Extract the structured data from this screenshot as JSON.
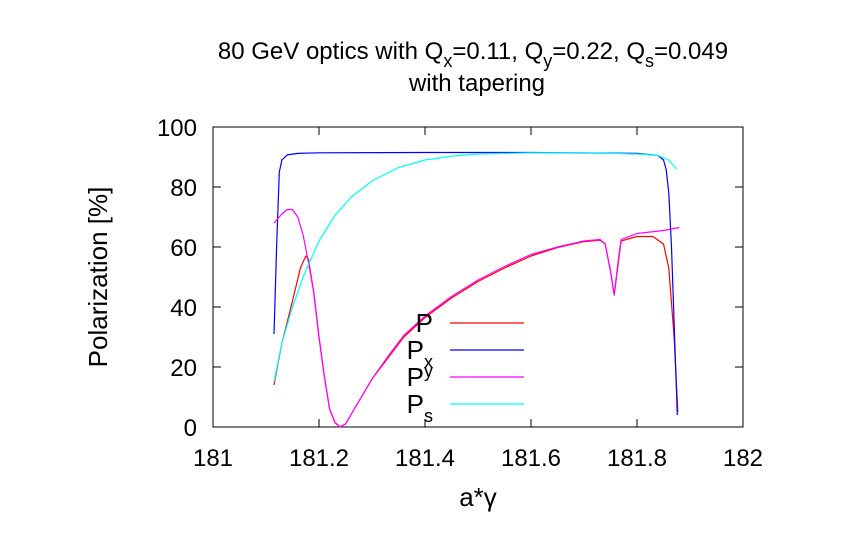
{
  "chart_data": {
    "type": "line",
    "title": {
      "line1": {
        "prefix": "80 GeV optics with Q",
        "qx_sub": "x",
        "qx_val": "=0.11, Q",
        "qy_sub": "y",
        "qy_val": "=0.22, Q",
        "qs_sub": "s",
        "qs_val": "=0.049"
      },
      "line2": "with tapering"
    },
    "xlabel": "a*γ",
    "ylabel": "Polarization [%]",
    "xlim": [
      181,
      182
    ],
    "ylim": [
      0,
      100
    ],
    "xticks": [
      "181",
      "181.2",
      "181.4",
      "181.6",
      "181.8",
      "182"
    ],
    "yticks": [
      "0",
      "20",
      "40",
      "60",
      "80",
      "100"
    ],
    "grid": false,
    "legend_position": "inside-bottom-center",
    "series": [
      {
        "label_main": "P",
        "label_sub": "",
        "label_sup": "",
        "color": "#ff0000",
        "points": [
          [
            181.115,
            14
          ],
          [
            181.13,
            28
          ],
          [
            181.15,
            42
          ],
          [
            181.165,
            53
          ],
          [
            181.175,
            57
          ],
          [
            181.18,
            56
          ],
          [
            181.19,
            45
          ],
          [
            181.2,
            30
          ],
          [
            181.21,
            17
          ],
          [
            181.22,
            6
          ],
          [
            181.23,
            1.5
          ],
          [
            181.24,
            0
          ],
          [
            181.25,
            1
          ],
          [
            181.26,
            4
          ],
          [
            181.28,
            10
          ],
          [
            181.3,
            16
          ],
          [
            181.33,
            23
          ],
          [
            181.36,
            30
          ],
          [
            181.4,
            36.5
          ],
          [
            181.45,
            43
          ],
          [
            181.5,
            48.5
          ],
          [
            181.55,
            53
          ],
          [
            181.6,
            57
          ],
          [
            181.65,
            59.8
          ],
          [
            181.7,
            61.8
          ],
          [
            181.73,
            62.3
          ],
          [
            181.74,
            61
          ],
          [
            181.75,
            52
          ],
          [
            181.757,
            44
          ],
          [
            181.765,
            55
          ],
          [
            181.77,
            62
          ],
          [
            181.8,
            63.5
          ],
          [
            181.83,
            63.5
          ],
          [
            181.85,
            61
          ],
          [
            181.86,
            53
          ],
          [
            181.87,
            30
          ],
          [
            181.877,
            5
          ]
        ]
      },
      {
        "label_main": "P",
        "label_sub": "x",
        "label_sup": "",
        "color": "#0000ff",
        "points": [
          [
            181.115,
            31
          ],
          [
            181.12,
            60
          ],
          [
            181.125,
            85
          ],
          [
            181.13,
            89
          ],
          [
            181.14,
            90.7
          ],
          [
            181.16,
            91.2
          ],
          [
            181.2,
            91.4
          ],
          [
            181.4,
            91.5
          ],
          [
            181.6,
            91.5
          ],
          [
            181.8,
            91.2
          ],
          [
            181.84,
            90.5
          ],
          [
            181.85,
            89
          ],
          [
            181.855,
            86
          ],
          [
            181.86,
            78
          ],
          [
            181.865,
            60
          ],
          [
            181.87,
            35
          ],
          [
            181.876,
            4
          ]
        ]
      },
      {
        "label_main": "P",
        "label_sub": "",
        "label_sup": "y",
        "color": "#ff00ff",
        "points": [
          [
            181.115,
            68
          ],
          [
            181.13,
            71
          ],
          [
            181.14,
            72.5
          ],
          [
            181.15,
            72.5
          ],
          [
            181.16,
            70
          ],
          [
            181.17,
            64
          ],
          [
            181.18,
            55
          ],
          [
            181.19,
            45
          ],
          [
            181.2,
            30
          ],
          [
            181.21,
            17
          ],
          [
            181.22,
            6
          ],
          [
            181.23,
            1.5
          ],
          [
            181.24,
            0
          ],
          [
            181.25,
            1
          ],
          [
            181.26,
            4
          ],
          [
            181.28,
            10
          ],
          [
            181.3,
            16
          ],
          [
            181.33,
            23.5
          ],
          [
            181.36,
            30.5
          ],
          [
            181.4,
            37
          ],
          [
            181.45,
            43.5
          ],
          [
            181.5,
            49
          ],
          [
            181.55,
            53.5
          ],
          [
            181.6,
            57.5
          ],
          [
            181.65,
            60
          ],
          [
            181.7,
            62
          ],
          [
            181.73,
            62.5
          ],
          [
            181.74,
            61
          ],
          [
            181.75,
            52
          ],
          [
            181.757,
            44
          ],
          [
            181.765,
            56
          ],
          [
            181.77,
            62.5
          ],
          [
            181.8,
            64.5
          ],
          [
            181.85,
            65.5
          ],
          [
            181.88,
            66.5
          ]
        ]
      },
      {
        "label_main": "P",
        "label_sub": "s",
        "label_sup": "",
        "color": "#00ffff",
        "points": [
          [
            181.115,
            15
          ],
          [
            181.13,
            28
          ],
          [
            181.15,
            40
          ],
          [
            181.17,
            50
          ],
          [
            181.2,
            62
          ],
          [
            181.23,
            70.5
          ],
          [
            181.26,
            76.5
          ],
          [
            181.3,
            82
          ],
          [
            181.35,
            86.5
          ],
          [
            181.4,
            89
          ],
          [
            181.45,
            90.3
          ],
          [
            181.5,
            91
          ],
          [
            181.6,
            91.4
          ],
          [
            181.7,
            91.4
          ],
          [
            181.8,
            91
          ],
          [
            181.84,
            90.5
          ],
          [
            181.86,
            89
          ],
          [
            181.875,
            86
          ]
        ]
      }
    ]
  }
}
